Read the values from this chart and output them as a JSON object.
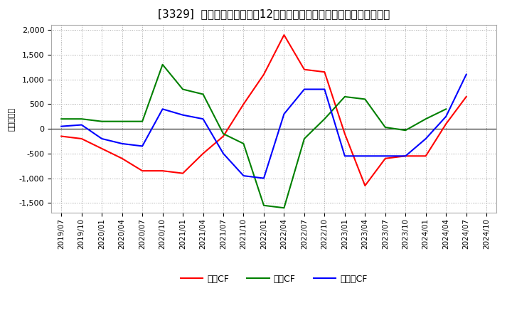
{
  "title": "[3329]  キャッシュフローの12か月移動合計の対前年同期増減額の推移",
  "ylabel": "（百万円）",
  "background_color": "#ffffff",
  "grid_color": "#aaaaaa",
  "xlabels": [
    "2019/07",
    "2019/10",
    "2020/01",
    "2020/04",
    "2020/07",
    "2020/10",
    "2021/01",
    "2021/04",
    "2021/07",
    "2021/10",
    "2022/01",
    "2022/04",
    "2022/07",
    "2022/10",
    "2023/01",
    "2023/04",
    "2023/07",
    "2023/10",
    "2024/01",
    "2024/04",
    "2024/07",
    "2024/10"
  ],
  "operating_cf": [
    -150,
    -200,
    -400,
    -600,
    -850,
    -850,
    -900,
    -500,
    -150,
    500,
    1100,
    1900,
    1200,
    1150,
    -100,
    -1150,
    -600,
    -550,
    -550,
    100,
    650,
    null
  ],
  "investing_cf": [
    200,
    200,
    150,
    150,
    150,
    1300,
    800,
    700,
    -100,
    -300,
    -1550,
    -1600,
    -200,
    200,
    650,
    600,
    30,
    -30,
    200,
    400,
    null,
    null
  ],
  "free_cf": [
    50,
    80,
    -200,
    -300,
    -350,
    400,
    280,
    200,
    -500,
    -950,
    -1000,
    300,
    800,
    800,
    -550,
    -550,
    -550,
    -550,
    -200,
    250,
    1100,
    null
  ],
  "ylim": [
    -1700,
    2100
  ],
  "yticks": [
    -1500,
    -1000,
    -500,
    0,
    500,
    1000,
    1500,
    2000
  ],
  "line_colors": {
    "operating": "#ff0000",
    "investing": "#008000",
    "free": "#0000ff"
  },
  "legend_labels": [
    "営業CF",
    "投資CF",
    "フリーCF"
  ]
}
